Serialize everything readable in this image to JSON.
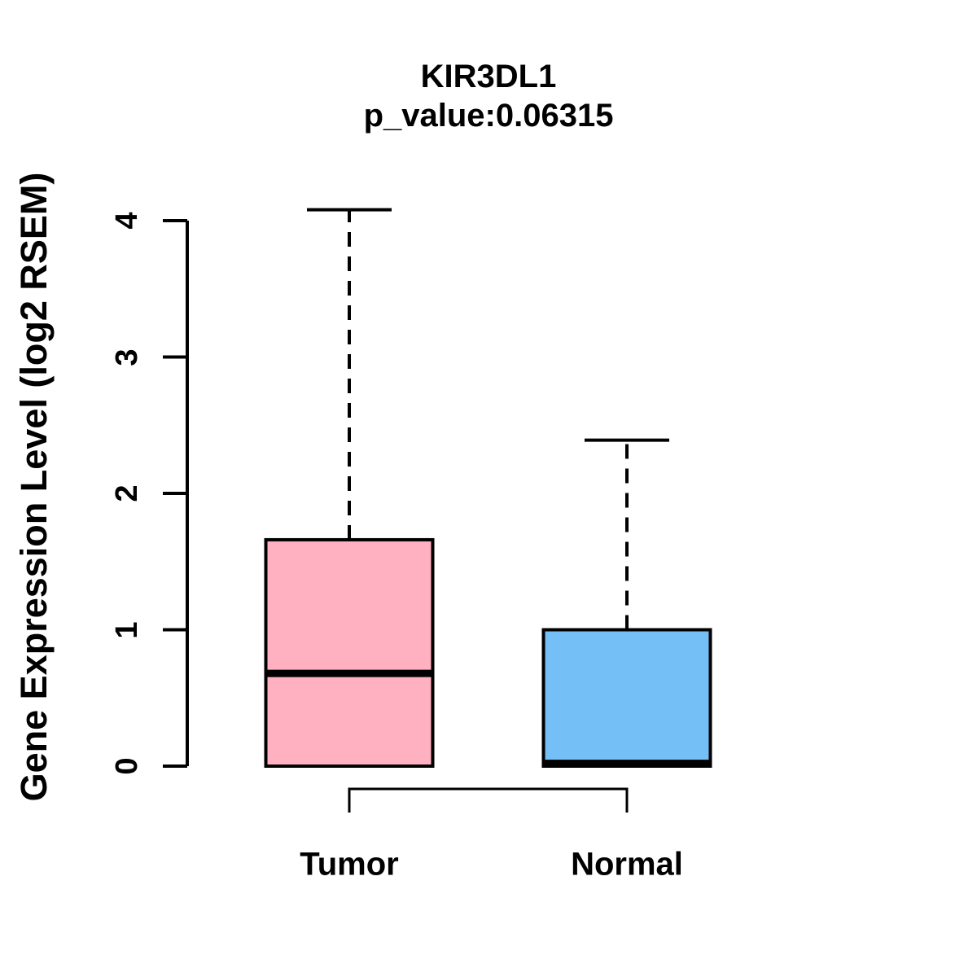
{
  "chart_data": {
    "type": "box",
    "title": "KIR3DL1",
    "subtitle": "p_value:0.06315",
    "p_value": 0.06315,
    "ylabel": "Gene Expression Level (log2 RSEM)",
    "xlabel": "",
    "categories": [
      "Tumor",
      "Normal"
    ],
    "yticks": [
      0,
      1,
      2,
      3,
      4
    ],
    "ylim": [
      0,
      4.1
    ],
    "grid": false,
    "legend_position": "none",
    "series": [
      {
        "name": "Tumor",
        "color": "#FFB1C1",
        "whisker_low": 0,
        "q1": 0,
        "median": 0.68,
        "q3": 1.66,
        "whisker_high": 4.08
      },
      {
        "name": "Normal",
        "color": "#73BFF6",
        "whisker_low": 0,
        "q1": 0,
        "median": 0.02,
        "q3": 1.0,
        "whisker_high": 2.39
      }
    ],
    "comparison_bracket": {
      "groups": [
        "Tumor",
        "Normal"
      ],
      "label": ""
    },
    "colors": {
      "line": "#000000",
      "background": "#FFFFFF"
    }
  }
}
